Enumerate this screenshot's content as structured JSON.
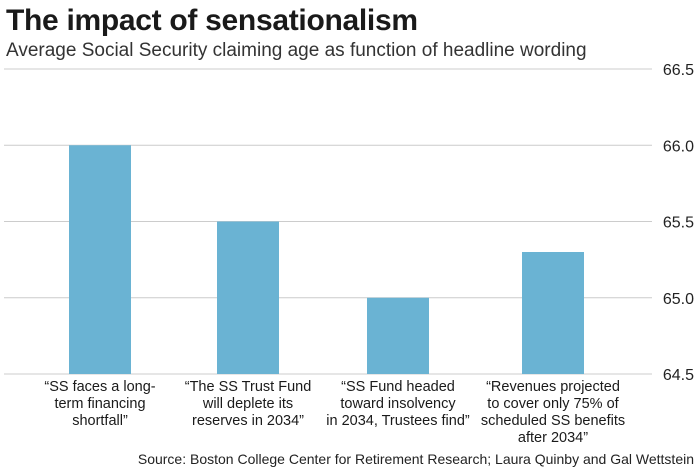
{
  "chart_data": {
    "type": "bar",
    "title": "The impact of sensationalism",
    "subtitle": "Average Social Security claiming age as function of headline wording",
    "categories": [
      [
        "“SS faces a long-",
        "term financing",
        "shortfall”"
      ],
      [
        "“The SS Trust Fund",
        "will deplete its",
        "reserves in 2034”"
      ],
      [
        "“SS Fund headed",
        "toward insolvency",
        "in 2034, Trustees find”"
      ],
      [
        "“Revenues projected",
        "to cover only 75% of",
        "scheduled SS benefits",
        "after 2034”"
      ]
    ],
    "values": [
      66.0,
      65.5,
      65.0,
      65.3
    ],
    "ylim": [
      64.5,
      66.5
    ],
    "yticks": [
      "64.5",
      "65.0",
      "65.5",
      "66.0",
      "66.5"
    ],
    "grid": true,
    "bar_color": "#6ab3d3",
    "grid_color": "#cccccc",
    "source": "Source: Boston College Center for Retirement Research; Laura Quinby and Gal Wettstein"
  }
}
